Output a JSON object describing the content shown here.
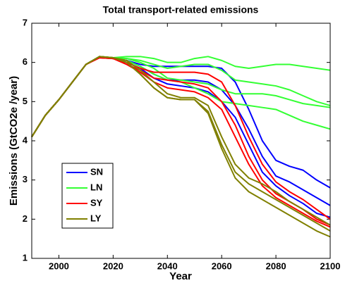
{
  "chart_data": {
    "type": "line",
    "title": "Total transport-related emissions",
    "x_label": "Year",
    "y_label": "Emissions (GtCO2e /year)",
    "x": [
      1990,
      1995,
      2000,
      2005,
      2010,
      2015,
      2020,
      2025,
      2030,
      2035,
      2040,
      2045,
      2050,
      2055,
      2060,
      2065,
      2070,
      2075,
      2080,
      2085,
      2090,
      2095,
      2100
    ],
    "xlim": [
      1990,
      2100
    ],
    "xticks": [
      2000,
      2020,
      2040,
      2060,
      2080,
      2100
    ],
    "ylim": [
      1,
      7
    ],
    "yticks": [
      1,
      2,
      3,
      4,
      5,
      6,
      7
    ],
    "grid": false,
    "legend_position": "lower left",
    "series": [
      {
        "name": "SN",
        "color": "#0000ff",
        "lines": [
          [
            4.1,
            4.65,
            5.05,
            5.5,
            5.95,
            6.15,
            6.1,
            6.05,
            5.95,
            5.9,
            5.9,
            5.9,
            5.9,
            5.9,
            5.85,
            5.5,
            4.8,
            4.0,
            3.5,
            3.35,
            3.25,
            3.0,
            2.8
          ],
          [
            4.1,
            4.65,
            5.05,
            5.5,
            5.95,
            6.15,
            6.1,
            6.05,
            5.9,
            5.7,
            5.55,
            5.55,
            5.55,
            5.5,
            5.3,
            4.9,
            4.3,
            3.6,
            3.1,
            2.95,
            2.75,
            2.55,
            2.35
          ],
          [
            4.1,
            4.65,
            5.05,
            5.5,
            5.95,
            6.15,
            6.1,
            6.0,
            5.85,
            5.6,
            5.45,
            5.4,
            5.35,
            5.25,
            5.0,
            4.6,
            3.9,
            3.2,
            2.85,
            2.6,
            2.4,
            2.15,
            2.05
          ]
        ]
      },
      {
        "name": "LN",
        "color": "#33ff33",
        "lines": [
          [
            4.1,
            4.65,
            5.05,
            5.5,
            5.95,
            6.15,
            6.12,
            6.15,
            6.15,
            6.1,
            6.0,
            6.0,
            6.1,
            6.15,
            6.05,
            5.9,
            5.85,
            5.9,
            5.95,
            5.95,
            5.9,
            5.85,
            5.8
          ],
          [
            4.1,
            4.65,
            5.05,
            5.5,
            5.95,
            6.15,
            6.12,
            6.1,
            6.05,
            5.95,
            5.85,
            5.9,
            5.95,
            5.95,
            5.8,
            5.55,
            5.5,
            5.45,
            5.4,
            5.3,
            5.15,
            5.0,
            4.9
          ],
          [
            4.1,
            4.65,
            5.05,
            5.5,
            5.95,
            6.15,
            6.12,
            6.1,
            6.0,
            5.85,
            5.6,
            5.55,
            5.5,
            5.45,
            5.3,
            5.2,
            5.2,
            5.2,
            5.15,
            5.05,
            4.95,
            4.9,
            4.85
          ],
          [
            4.1,
            4.65,
            5.05,
            5.5,
            5.95,
            6.15,
            6.12,
            6.05,
            5.9,
            5.7,
            5.55,
            5.5,
            5.35,
            5.2,
            5.0,
            4.95,
            4.9,
            4.85,
            4.8,
            4.65,
            4.5,
            4.4,
            4.3
          ]
        ]
      },
      {
        "name": "SY",
        "color": "#ff0000",
        "lines": [
          [
            4.1,
            4.65,
            5.05,
            5.5,
            5.95,
            6.12,
            6.1,
            6.0,
            5.85,
            5.75,
            5.75,
            5.75,
            5.75,
            5.7,
            5.5,
            4.9,
            4.1,
            3.4,
            2.95,
            2.7,
            2.5,
            2.25,
            2.0
          ],
          [
            4.1,
            4.65,
            5.05,
            5.5,
            5.95,
            6.12,
            6.1,
            5.95,
            5.8,
            5.6,
            5.55,
            5.5,
            5.45,
            5.35,
            5.0,
            4.4,
            3.6,
            3.0,
            2.65,
            2.45,
            2.25,
            2.0,
            1.85
          ],
          [
            4.1,
            4.65,
            5.05,
            5.5,
            5.95,
            6.12,
            6.1,
            5.95,
            5.75,
            5.5,
            5.35,
            5.3,
            5.25,
            5.1,
            4.8,
            4.1,
            3.4,
            2.85,
            2.55,
            2.35,
            2.15,
            1.95,
            1.8
          ]
        ]
      },
      {
        "name": "LY",
        "color": "#808000",
        "lines": [
          [
            4.1,
            4.65,
            5.05,
            5.5,
            5.95,
            6.15,
            6.12,
            6.05,
            5.8,
            5.5,
            5.2,
            5.1,
            5.1,
            4.9,
            4.1,
            3.4,
            3.05,
            2.9,
            2.7,
            2.45,
            2.25,
            2.05,
            1.85
          ],
          [
            4.1,
            4.65,
            5.05,
            5.5,
            5.95,
            6.15,
            6.12,
            6.0,
            5.7,
            5.35,
            5.1,
            5.05,
            5.05,
            4.75,
            3.9,
            3.2,
            2.9,
            2.7,
            2.5,
            2.3,
            2.1,
            1.9,
            1.7
          ],
          [
            4.1,
            4.65,
            5.05,
            5.5,
            5.95,
            6.15,
            6.12,
            6.0,
            5.7,
            5.35,
            5.1,
            5.05,
            5.05,
            4.7,
            3.8,
            3.05,
            2.7,
            2.5,
            2.3,
            2.1,
            1.9,
            1.7,
            1.55
          ]
        ]
      }
    ]
  }
}
